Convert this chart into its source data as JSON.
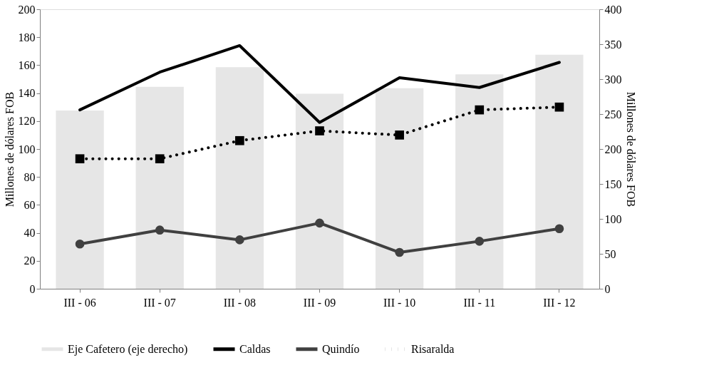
{
  "chart_data": {
    "type": "line",
    "categories": [
      "III - 06",
      "III - 07",
      "III - 08",
      "III - 09",
      "III - 10",
      "III - 11",
      "III - 12"
    ],
    "ylabel": "Millones de dólares FOB",
    "y2label": "Millones de dólares FOB",
    "ylim": [
      0,
      200
    ],
    "yticks": [
      0,
      20,
      40,
      60,
      80,
      100,
      120,
      140,
      160,
      180,
      200
    ],
    "y2lim": [
      0,
      400
    ],
    "y2ticks": [
      0,
      50,
      100,
      150,
      200,
      250,
      300,
      350,
      400
    ],
    "grid": false,
    "legend": "bottom",
    "series": [
      {
        "name": "Eje Cafetero (eje derecho)",
        "type": "bar",
        "axis": "y2",
        "color": "#e6e6e6",
        "values": [
          255,
          289,
          317,
          279,
          287,
          307,
          335
        ]
      },
      {
        "name": "Caldas",
        "color": "#000000",
        "marker": "none",
        "line_style": "solid",
        "values": [
          128,
          155,
          174,
          119,
          151,
          144,
          162
        ]
      },
      {
        "name": "Quindío",
        "color": "#404040",
        "marker": "circle",
        "line_style": "solid",
        "values": [
          32,
          42,
          35,
          47,
          26,
          34,
          43
        ]
      },
      {
        "name": "Risaralda",
        "color": "#000000",
        "marker": "square",
        "line_style": "dotted",
        "values": [
          93,
          93,
          106,
          113,
          110,
          128,
          130
        ]
      }
    ]
  }
}
